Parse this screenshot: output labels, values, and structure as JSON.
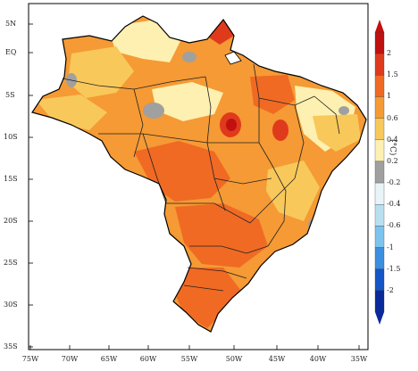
{
  "map": {
    "unit": "(°C)",
    "palette": {
      "ocean": "#ffffff",
      "border": "#000000",
      "no_data": "#a0a0a0"
    },
    "latitude_labels": [
      "5N",
      "EQ",
      "5S",
      "10S",
      "15S",
      "20S",
      "25S",
      "30S",
      "35S"
    ],
    "longitude_labels": [
      "75W",
      "70W",
      "65W",
      "60W",
      "55W",
      "50W",
      "45W",
      "40W",
      "35W"
    ]
  },
  "colorbar": {
    "tick_labels": [
      "2",
      "1.5",
      "1",
      "0.6",
      "0.4",
      "0.2",
      "-0.2",
      "-0.4",
      "-0.6",
      "-1",
      "-1.5",
      "-2"
    ],
    "bins": [
      {
        "color": "#c01010"
      },
      {
        "color": "#e03a1c"
      },
      {
        "color": "#f06a24"
      },
      {
        "color": "#f59a34"
      },
      {
        "color": "#f8c85a"
      },
      {
        "color": "#fdf0b0"
      },
      {
        "color": "#a0a0a0"
      },
      {
        "color": "#e8f4f8"
      },
      {
        "color": "#b8e0f0"
      },
      {
        "color": "#7cc4ee"
      },
      {
        "color": "#3a8fe0"
      },
      {
        "color": "#1455c8"
      },
      {
        "color": "#0a2a9c"
      }
    ]
  }
}
